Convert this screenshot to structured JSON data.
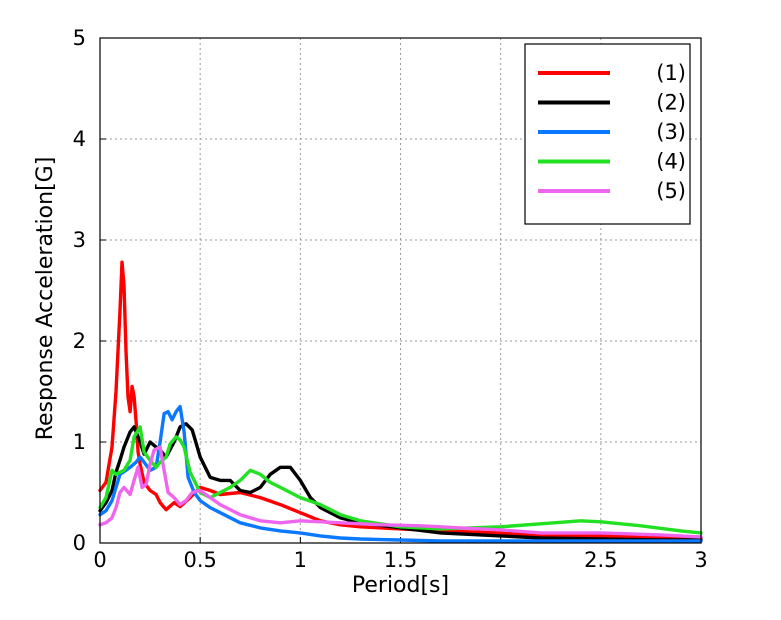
{
  "chart_data": {
    "type": "line",
    "title": "",
    "xlabel": "Period[s]",
    "ylabel": "Response Acceleration[G]",
    "xlim": [
      0,
      3
    ],
    "ylim": [
      0,
      5
    ],
    "xticks": [
      "0",
      "0.5",
      "1",
      "1.5",
      "2",
      "2.5",
      "3"
    ],
    "yticks": [
      "0",
      "1",
      "2",
      "3",
      "4",
      "5"
    ],
    "grid": true,
    "legend_position": "top-right",
    "series": [
      {
        "name": "(1)",
        "color": "#ff0000",
        "x": [
          0,
          0.03,
          0.06,
          0.08,
          0.1,
          0.11,
          0.12,
          0.13,
          0.14,
          0.15,
          0.16,
          0.17,
          0.18,
          0.19,
          0.2,
          0.22,
          0.25,
          0.28,
          0.3,
          0.33,
          0.37,
          0.4,
          0.45,
          0.5,
          0.55,
          0.6,
          0.7,
          0.8,
          0.9,
          1.0,
          1.1,
          1.2,
          1.3,
          1.5,
          1.7,
          2.0,
          2.2,
          2.5,
          2.8,
          3.0
        ],
        "y": [
          0.52,
          0.6,
          0.95,
          1.5,
          2.3,
          2.78,
          2.55,
          1.9,
          1.45,
          1.3,
          1.55,
          1.45,
          1.2,
          0.9,
          0.78,
          0.6,
          0.52,
          0.48,
          0.4,
          0.33,
          0.4,
          0.36,
          0.45,
          0.55,
          0.52,
          0.48,
          0.5,
          0.45,
          0.38,
          0.3,
          0.22,
          0.18,
          0.16,
          0.14,
          0.12,
          0.1,
          0.08,
          0.07,
          0.06,
          0.05
        ]
      },
      {
        "name": "(2)",
        "color": "#000000",
        "x": [
          0,
          0.03,
          0.06,
          0.08,
          0.1,
          0.12,
          0.15,
          0.17,
          0.2,
          0.22,
          0.25,
          0.28,
          0.3,
          0.33,
          0.37,
          0.4,
          0.43,
          0.46,
          0.5,
          0.55,
          0.6,
          0.65,
          0.7,
          0.75,
          0.8,
          0.85,
          0.9,
          0.95,
          1.0,
          1.05,
          1.1,
          1.2,
          1.3,
          1.5,
          1.7,
          2.0,
          2.2,
          2.5,
          2.8,
          3.0
        ],
        "y": [
          0.32,
          0.4,
          0.52,
          0.7,
          0.82,
          0.95,
          1.1,
          1.15,
          1.0,
          0.88,
          1.0,
          0.95,
          0.92,
          0.85,
          1.0,
          1.15,
          1.18,
          1.12,
          0.85,
          0.65,
          0.62,
          0.62,
          0.52,
          0.5,
          0.55,
          0.68,
          0.75,
          0.75,
          0.62,
          0.45,
          0.35,
          0.25,
          0.2,
          0.15,
          0.1,
          0.07,
          0.05,
          0.04,
          0.03,
          0.03
        ]
      },
      {
        "name": "(3)",
        "color": "#0a78ff",
        "x": [
          0,
          0.03,
          0.06,
          0.08,
          0.1,
          0.13,
          0.15,
          0.18,
          0.2,
          0.22,
          0.25,
          0.28,
          0.3,
          0.32,
          0.34,
          0.36,
          0.38,
          0.4,
          0.42,
          0.44,
          0.47,
          0.5,
          0.55,
          0.6,
          0.7,
          0.8,
          0.9,
          1.0,
          1.1,
          1.2,
          1.3,
          1.5,
          1.7,
          2.0,
          2.5,
          3.0
        ],
        "y": [
          0.28,
          0.32,
          0.42,
          0.55,
          0.68,
          0.72,
          0.75,
          0.8,
          0.85,
          0.8,
          0.72,
          0.75,
          1.0,
          1.28,
          1.3,
          1.22,
          1.3,
          1.35,
          1.1,
          0.65,
          0.5,
          0.42,
          0.35,
          0.3,
          0.2,
          0.15,
          0.12,
          0.1,
          0.07,
          0.05,
          0.04,
          0.03,
          0.02,
          0.02,
          0.02,
          0.02
        ]
      },
      {
        "name": "(4)",
        "color": "#22e022",
        "x": [
          0,
          0.03,
          0.06,
          0.08,
          0.1,
          0.12,
          0.15,
          0.17,
          0.2,
          0.22,
          0.25,
          0.28,
          0.3,
          0.33,
          0.35,
          0.38,
          0.4,
          0.42,
          0.45,
          0.5,
          0.55,
          0.6,
          0.65,
          0.7,
          0.75,
          0.8,
          0.85,
          0.9,
          0.95,
          1.0,
          1.1,
          1.2,
          1.3,
          1.5,
          1.7,
          2.0,
          2.2,
          2.4,
          2.5,
          2.7,
          2.9,
          3.0
        ],
        "y": [
          0.35,
          0.45,
          0.72,
          0.68,
          0.7,
          0.72,
          0.82,
          1.05,
          1.15,
          0.9,
          0.82,
          0.75,
          0.8,
          0.85,
          0.98,
          1.05,
          1.02,
          0.95,
          0.7,
          0.5,
          0.45,
          0.5,
          0.55,
          0.62,
          0.72,
          0.68,
          0.6,
          0.55,
          0.5,
          0.45,
          0.38,
          0.28,
          0.22,
          0.16,
          0.14,
          0.16,
          0.19,
          0.22,
          0.21,
          0.17,
          0.12,
          0.1
        ]
      },
      {
        "name": "(5)",
        "color": "#ee66ee",
        "x": [
          0,
          0.03,
          0.06,
          0.08,
          0.1,
          0.12,
          0.15,
          0.17,
          0.19,
          0.21,
          0.23,
          0.25,
          0.27,
          0.3,
          0.32,
          0.34,
          0.37,
          0.4,
          0.43,
          0.46,
          0.5,
          0.55,
          0.6,
          0.7,
          0.8,
          0.9,
          1.0,
          1.2,
          1.4,
          1.6,
          1.7,
          1.8,
          2.0,
          2.2,
          2.5,
          2.8,
          3.0
        ],
        "y": [
          0.18,
          0.2,
          0.25,
          0.35,
          0.5,
          0.55,
          0.48,
          0.62,
          0.75,
          0.55,
          0.58,
          0.78,
          0.92,
          0.95,
          0.72,
          0.5,
          0.45,
          0.38,
          0.42,
          0.5,
          0.52,
          0.45,
          0.38,
          0.28,
          0.22,
          0.2,
          0.22,
          0.2,
          0.18,
          0.17,
          0.16,
          0.15,
          0.13,
          0.1,
          0.1,
          0.08,
          0.06
        ]
      }
    ]
  }
}
